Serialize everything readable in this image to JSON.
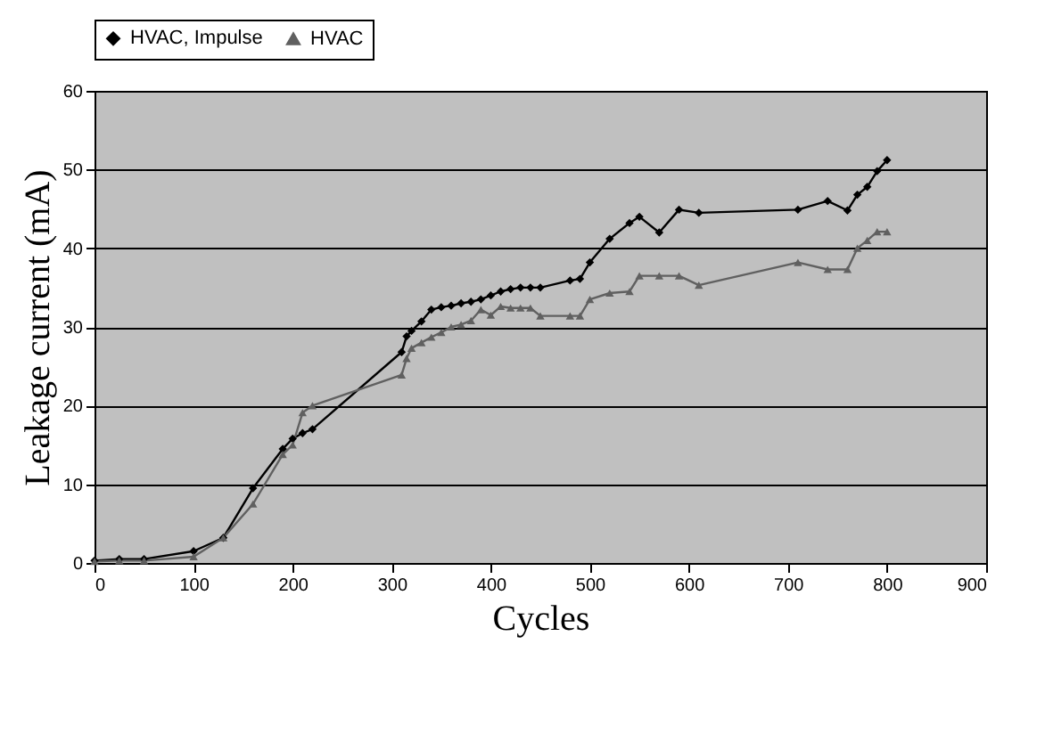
{
  "chart_data": {
    "type": "line",
    "xlabel": "Cycles",
    "ylabel": "Leakage current (mA)",
    "xlim": [
      0,
      900
    ],
    "xticks": [
      0,
      100,
      200,
      300,
      400,
      500,
      600,
      700,
      800,
      900
    ],
    "ylim": [
      0,
      60
    ],
    "yticks": [
      0,
      10,
      20,
      30,
      40,
      50,
      60
    ],
    "grid": "y",
    "legend": "top",
    "series": [
      {
        "name": "HVAC, Impulse",
        "color": "#000000",
        "marker": "diamond",
        "x": [
          0,
          25,
          50,
          100,
          130,
          160,
          190,
          200,
          210,
          220,
          310,
          315,
          320,
          330,
          340,
          350,
          360,
          370,
          380,
          390,
          400,
          410,
          420,
          430,
          440,
          450,
          480,
          490,
          500,
          520,
          540,
          550,
          570,
          590,
          610,
          710,
          740,
          760,
          770,
          780,
          790,
          800
        ],
        "values": [
          0.3,
          0.5,
          0.5,
          1.5,
          3.2,
          9.5,
          14.5,
          15.8,
          16.5,
          17,
          26.8,
          28.8,
          29.5,
          30.7,
          32.2,
          32.5,
          32.7,
          33,
          33.2,
          33.5,
          34,
          34.5,
          34.8,
          35,
          35,
          35,
          35.9,
          36.1,
          38.2,
          41.2,
          43.2,
          44,
          42,
          44.9,
          44.5,
          44.9,
          46,
          44.8,
          46.8,
          47.8,
          49.8,
          51.2
        ]
      },
      {
        "name": "HVAC",
        "color": "#606060",
        "marker": "triangle",
        "x": [
          0,
          25,
          50,
          100,
          130,
          160,
          190,
          200,
          210,
          220,
          310,
          315,
          320,
          330,
          340,
          350,
          360,
          370,
          380,
          390,
          400,
          410,
          420,
          430,
          440,
          450,
          480,
          490,
          500,
          520,
          540,
          550,
          570,
          590,
          610,
          710,
          740,
          760,
          770,
          780,
          790,
          800
        ],
        "values": [
          0.2,
          0.3,
          0.3,
          0.8,
          3.2,
          7.5,
          13.8,
          15,
          19.1,
          20,
          23.9,
          26,
          27.3,
          28,
          28.7,
          29.3,
          30,
          30.3,
          30.8,
          32.2,
          31.5,
          32.6,
          32.4,
          32.4,
          32.4,
          31.4,
          31.4,
          31.4,
          33.5,
          34.3,
          34.5,
          36.5,
          36.5,
          36.5,
          35.3,
          38.2,
          37.3,
          37.3,
          40,
          41,
          42.1,
          42.1
        ]
      }
    ]
  }
}
